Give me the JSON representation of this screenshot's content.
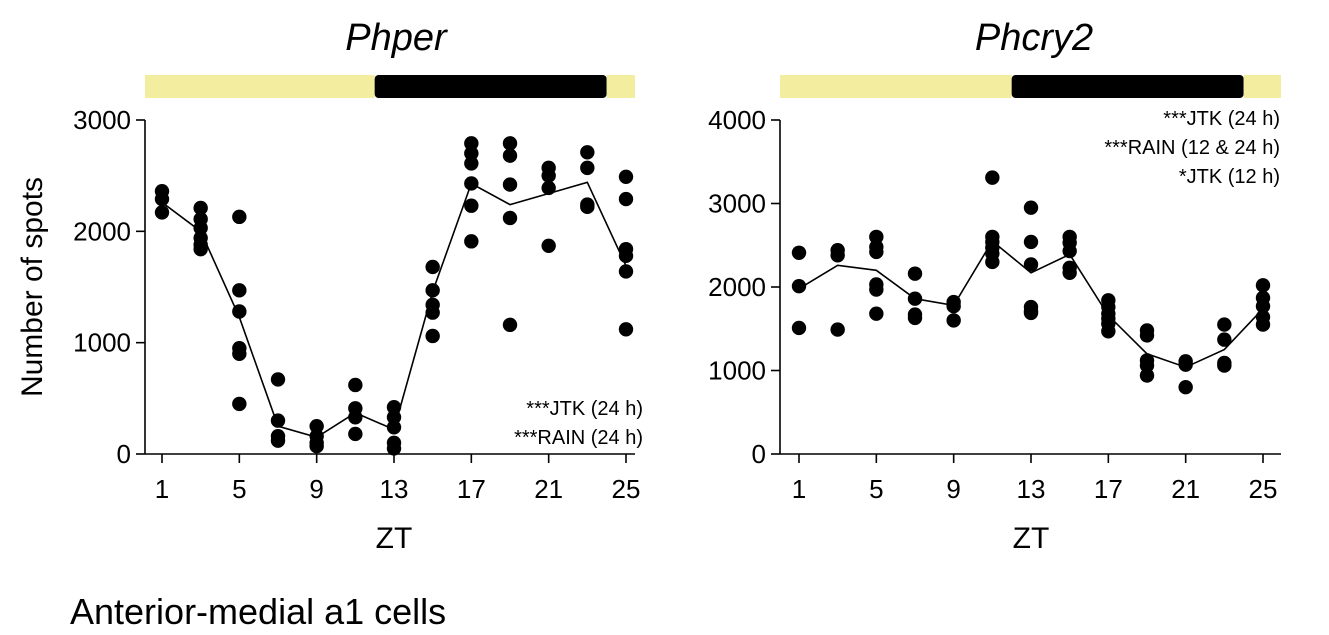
{
  "figure_caption": "Anterior-medial a1 cells",
  "colors": {
    "light_phase": "#F3EDA0",
    "dark_phase": "#000000",
    "points": "#000000",
    "line": "#000000"
  },
  "chart_data": [
    {
      "type": "scatter",
      "title": "Phper",
      "xlabel": "ZT",
      "ylabel": "Number of spots",
      "xlim": [
        0,
        26
      ],
      "ylim": [
        0,
        3000
      ],
      "xticks": [
        1,
        5,
        9,
        13,
        17,
        21,
        25
      ],
      "yticks": [
        0,
        1000,
        2000,
        3000
      ],
      "light_dark_bar": [
        {
          "phase": "light",
          "start": 0,
          "end": 12
        },
        {
          "phase": "dark",
          "start": 12,
          "end": 24
        },
        {
          "phase": "light",
          "start": 24,
          "end": 26
        }
      ],
      "annotations": [
        "***JTK (24 h)",
        "***RAIN (24 h)"
      ],
      "annotation_position": "bottom-right",
      "points": [
        {
          "x": 1,
          "values": [
            2360,
            2290,
            2170
          ]
        },
        {
          "x": 3,
          "values": [
            2210,
            2110,
            2030,
            1940,
            1880,
            1840
          ]
        },
        {
          "x": 5,
          "values": [
            2130,
            1470,
            1280,
            950,
            900,
            450
          ]
        },
        {
          "x": 7,
          "values": [
            670,
            300,
            160,
            120
          ]
        },
        {
          "x": 9,
          "values": [
            250,
            160,
            100,
            70
          ]
        },
        {
          "x": 11,
          "values": [
            620,
            410,
            330,
            180
          ]
        },
        {
          "x": 13,
          "values": [
            420,
            330,
            240,
            100,
            50
          ]
        },
        {
          "x": 15,
          "values": [
            1680,
            1470,
            1340,
            1270,
            1060
          ]
        },
        {
          "x": 17,
          "values": [
            2790,
            2700,
            2610,
            2430,
            2230,
            1910
          ]
        },
        {
          "x": 19,
          "values": [
            2790,
            2680,
            2420,
            2120,
            1160
          ]
        },
        {
          "x": 21,
          "values": [
            2570,
            2500,
            2390,
            1870
          ]
        },
        {
          "x": 23,
          "values": [
            2710,
            2570,
            2240,
            2220
          ]
        },
        {
          "x": 25,
          "values": [
            2490,
            2290,
            1840,
            1780,
            1640,
            1120
          ]
        }
      ],
      "mean_line": {
        "x": [
          1,
          3,
          5,
          7,
          9,
          11,
          13,
          15,
          17,
          19,
          21,
          23,
          25
        ],
        "y": [
          2260,
          2000,
          1230,
          250,
          150,
          370,
          220,
          1460,
          2430,
          2240,
          2340,
          2440,
          1690
        ]
      }
    },
    {
      "type": "scatter",
      "title": "Phcry2",
      "xlabel": "ZT",
      "ylabel": "",
      "xlim": [
        0,
        26
      ],
      "ylim": [
        0,
        4000
      ],
      "xticks": [
        1,
        5,
        9,
        13,
        17,
        21,
        25
      ],
      "yticks": [
        0,
        1000,
        2000,
        3000,
        4000
      ],
      "light_dark_bar": [
        {
          "phase": "light",
          "start": 0,
          "end": 12
        },
        {
          "phase": "dark",
          "start": 12,
          "end": 24
        },
        {
          "phase": "light",
          "start": 24,
          "end": 26
        }
      ],
      "annotations": [
        "***JTK (24 h)",
        "***RAIN (12 & 24 h)",
        "*JTK (12 h)"
      ],
      "annotation_position": "top-right",
      "points": [
        {
          "x": 1,
          "values": [
            2410,
            2010,
            1510
          ]
        },
        {
          "x": 3,
          "values": [
            2440,
            2380,
            1490
          ]
        },
        {
          "x": 5,
          "values": [
            2600,
            2480,
            2420,
            2030,
            1970,
            1680
          ]
        },
        {
          "x": 7,
          "values": [
            2160,
            1860,
            1670,
            1630
          ]
        },
        {
          "x": 9,
          "values": [
            1820,
            1770,
            1600
          ]
        },
        {
          "x": 11,
          "values": [
            3310,
            2600,
            2540,
            2470,
            2400,
            2300
          ]
        },
        {
          "x": 13,
          "values": [
            2950,
            2540,
            2270,
            1760,
            1710,
            1690
          ]
        },
        {
          "x": 15,
          "values": [
            2600,
            2530,
            2430,
            2230,
            2170
          ]
        },
        {
          "x": 17,
          "values": [
            1840,
            1760,
            1680,
            1620,
            1560,
            1470
          ]
        },
        {
          "x": 19,
          "values": [
            1480,
            1420,
            1120,
            1060,
            940
          ]
        },
        {
          "x": 21,
          "values": [
            1110,
            1070,
            800
          ]
        },
        {
          "x": 23,
          "values": [
            1550,
            1370,
            1090,
            1060
          ]
        },
        {
          "x": 25,
          "values": [
            2020,
            1870,
            1770,
            1640,
            1550
          ]
        }
      ],
      "mean_line": {
        "x": [
          1,
          3,
          5,
          7,
          9,
          11,
          13,
          15,
          17,
          19,
          21,
          23,
          25
        ],
        "y": [
          1980,
          2260,
          2200,
          1860,
          1780,
          2550,
          2170,
          2390,
          1660,
          1200,
          1040,
          1250,
          1740
        ]
      }
    }
  ]
}
